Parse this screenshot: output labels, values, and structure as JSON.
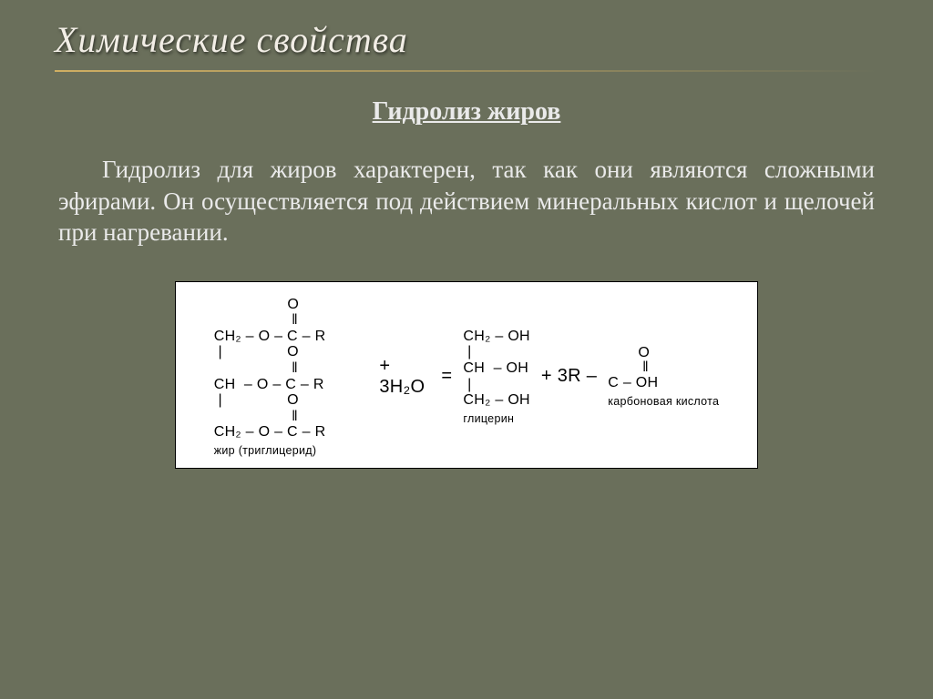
{
  "slide": {
    "background_color": "#6a6f5b",
    "text_color": "#eaeaea",
    "title": "Химические свойства",
    "title_color": "#f2eee6",
    "title_fontsize": 40,
    "rule_color": "#cfae62",
    "subtitle": "Гидролиз жиров",
    "subtitle_fontsize": 28,
    "body": "Гидролиз для жиров характерен, так как они являются сложными эфирами. Он осуществляется под действием минеральных кислот и щелочей при нагревании.",
    "body_fontsize": 27,
    "reaction_box": {
      "background_color": "#ffffff",
      "text_color": "#000000",
      "border_color": "#000000",
      "font_size": 16,
      "triglyceride": {
        "lines": [
          "                 O",
          "                  ‖",
          "CH₂ – O – C – R",
          " |               O",
          "                  ‖",
          "CH  – O – C – R",
          " |               O",
          "                  ‖",
          "CH₂ – O – C – R"
        ],
        "label": "жир (триглицерид)"
      },
      "plus": "+",
      "water": "3H₂O",
      "equals": "=",
      "glycerol": {
        "lines": [
          "CH₂ – OH",
          " |",
          "CH  – OH",
          " |",
          "CH₂ – OH"
        ],
        "label": "глицерин"
      },
      "plus2": "+ 3R –",
      "acid": {
        "lines": [
          "       O",
          "        ‖",
          "C – OH"
        ],
        "label": "карбоновая кислота"
      }
    }
  }
}
